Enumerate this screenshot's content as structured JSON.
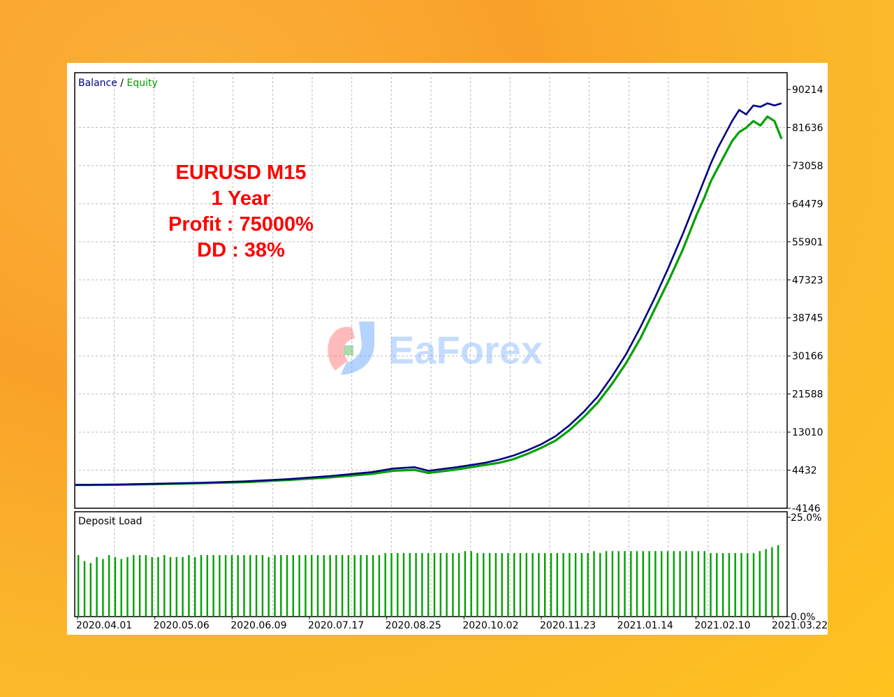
{
  "colors": {
    "balance": "#000080",
    "equity": "#00a000",
    "deposit_load": "#00a000",
    "annotation": "#ff0000",
    "grid": "#b8b8b8"
  },
  "watermark": {
    "text": "EaForex"
  },
  "chart_data": [
    {
      "type": "line",
      "legend": {
        "items": [
          "Balance",
          "Equity"
        ],
        "separator": " / ",
        "placement": "top-left"
      },
      "annotation": [
        "EURUSD M15",
        "1 Year",
        "Profit : 75000%",
        "DD : 38%"
      ],
      "y_ticks": [
        "90214",
        "81636",
        "73058",
        "64479",
        "55901",
        "47323",
        "38745",
        "30166",
        "21588",
        "13010",
        "4432",
        "-4146"
      ],
      "ylim": [
        -4146,
        90214
      ],
      "grid": true,
      "x": [
        0,
        0.06,
        0.12,
        0.18,
        0.24,
        0.3,
        0.36,
        0.42,
        0.45,
        0.48,
        0.5,
        0.54,
        0.58,
        0.6,
        0.62,
        0.64,
        0.66,
        0.68,
        0.7,
        0.72,
        0.74,
        0.76,
        0.78,
        0.8,
        0.82,
        0.84,
        0.86,
        0.87,
        0.88,
        0.89,
        0.9,
        0.91,
        0.92,
        0.93,
        0.94,
        0.95,
        0.96,
        0.97,
        0.98,
        0.99,
        1.0
      ],
      "series": [
        {
          "name": "Balance",
          "values": [
            0,
            100,
            300,
            500,
            800,
            1300,
            2000,
            2900,
            3700,
            4000,
            3200,
            4000,
            5000,
            5700,
            6600,
            7800,
            9200,
            11000,
            13500,
            16500,
            20000,
            24500,
            29500,
            35500,
            42000,
            49000,
            56500,
            60500,
            64500,
            68500,
            72500,
            76000,
            79000,
            82000,
            84500,
            83500,
            85500,
            85200,
            86000,
            85500,
            86000
          ]
        },
        {
          "name": "Equity",
          "values": [
            0,
            50,
            200,
            400,
            650,
            1100,
            1700,
            2500,
            3200,
            3400,
            2700,
            3500,
            4500,
            5000,
            5800,
            7000,
            8400,
            10000,
            12400,
            15300,
            18600,
            22800,
            27500,
            33000,
            39500,
            46000,
            53000,
            57000,
            61000,
            64500,
            68500,
            71500,
            74500,
            77500,
            79500,
            80500,
            82000,
            81000,
            83000,
            82000,
            78000
          ]
        }
      ]
    },
    {
      "type": "bar",
      "title": "Deposit Load",
      "y_ticks": [
        "25.0%",
        "0.0%"
      ],
      "ylim": [
        0,
        25
      ],
      "x_ticks": [
        "2020.04.01",
        "2020.05.06",
        "2020.06.09",
        "2020.07.17",
        "2020.08.25",
        "2020.10.02",
        "2020.11.23",
        "2021.01.14",
        "2021.02.10",
        "2021.03.22"
      ],
      "series": [
        {
          "name": "Deposit Load",
          "values": [
            15.5,
            14.0,
            13.5,
            15.0,
            14.5,
            15.5,
            15.0,
            14.5,
            15.0,
            15.5,
            15.5,
            15.5,
            15.0,
            15.0,
            15.5,
            15.0,
            15.0,
            15.0,
            15.5,
            15.0,
            15.5,
            15.5,
            15.5,
            15.5,
            15.5,
            15.5,
            15.5,
            15.5,
            15.5,
            15.5,
            15.5,
            15.0,
            15.5,
            15.5,
            15.5,
            15.5,
            15.5,
            15.5,
            15.5,
            15.5,
            15.5,
            15.5,
            15.5,
            15.5,
            15.5,
            15.5,
            15.5,
            15.5,
            15.5,
            15.5,
            16.0,
            16.0,
            16.0,
            16.0,
            16.0,
            16.0,
            16.0,
            16.0,
            16.0,
            16.0,
            16.0,
            16.0,
            16.0,
            16.5,
            16.5,
            16.0,
            16.0,
            16.0,
            16.0,
            16.0,
            16.0,
            16.0,
            16.0,
            16.0,
            16.0,
            16.0,
            16.0,
            16.0,
            16.0,
            16.0,
            16.0,
            16.0,
            16.0,
            16.0,
            16.5,
            16.0,
            16.5,
            16.5,
            16.5,
            16.5,
            16.5,
            16.5,
            16.5,
            16.5,
            16.5,
            16.5,
            16.5,
            16.5,
            16.5,
            16.5,
            16.5,
            16.5,
            16.5,
            16.0,
            16.0,
            16.0,
            16.0,
            16.0,
            16.0,
            16.0,
            16.0,
            16.5,
            17.0,
            17.5,
            18.0
          ]
        }
      ]
    }
  ]
}
